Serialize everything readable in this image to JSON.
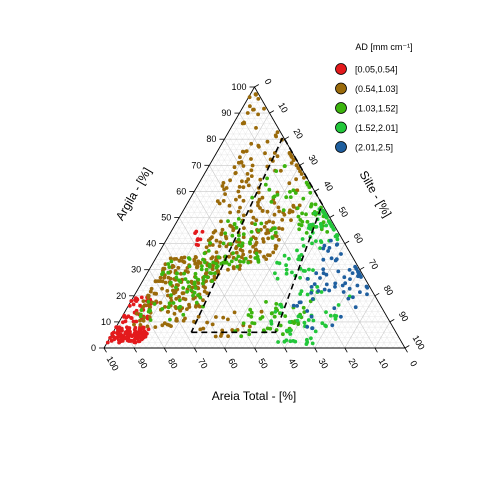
{
  "chart_data": {
    "type": "scatter",
    "subtype": "ternary",
    "axes": {
      "bottom": {
        "label": "Areia Total - [%]",
        "ticks": [
          "100",
          "90",
          "80",
          "70",
          "60",
          "50",
          "40",
          "30",
          "20",
          "10",
          "0"
        ]
      },
      "left": {
        "label": "Argila - [%]",
        "ticks": [
          "0",
          "10",
          "20",
          "30",
          "40",
          "50",
          "60",
          "70",
          "80",
          "90",
          "100"
        ]
      },
      "right": {
        "label": "Silte - [%]",
        "ticks": [
          "0",
          "10",
          "20",
          "30",
          "40",
          "50",
          "60",
          "70",
          "80",
          "90",
          "100"
        ]
      }
    },
    "grid": true,
    "legend": {
      "title": "AD [mm cm⁻¹]",
      "position": "top-right",
      "items": [
        {
          "label": "[0.05,0.54]",
          "color": "#e31a1c"
        },
        {
          "label": "(0.54,1.03]",
          "color": "#9a6a0a"
        },
        {
          "label": "(1.03,1.52]",
          "color": "#3cb40e"
        },
        {
          "label": "(1.52,2.01]",
          "color": "#22c73a"
        },
        {
          "label": "(2.01,2.5]",
          "color": "#1f5f9f"
        }
      ]
    },
    "region_outline": {
      "style": "dashed",
      "vertices": [
        {
          "clay": 6,
          "silt": 26,
          "sand": 68
        },
        {
          "clay": 6,
          "silt": 54,
          "sand": 40
        },
        {
          "clay": 55,
          "silt": 45,
          "sand": 0
        },
        {
          "clay": 81,
          "silt": 19,
          "sand": 0
        },
        {
          "clay": 6,
          "silt": 26,
          "sand": 68
        }
      ]
    },
    "clusters": [
      {
        "series": 0,
        "clay": [
          2,
          8
        ],
        "silt": [
          0,
          12
        ],
        "count": 110
      },
      {
        "series": 0,
        "clay": [
          8,
          20
        ],
        "silt": [
          0,
          10
        ],
        "count": 40
      },
      {
        "series": 0,
        "clay": [
          38,
          46
        ],
        "silt": [
          8,
          12
        ],
        "count": 8
      },
      {
        "series": 1,
        "clay": [
          8,
          35
        ],
        "silt": [
          4,
          24
        ],
        "count": 180
      },
      {
        "series": 1,
        "clay": [
          30,
          55
        ],
        "silt": [
          14,
          38
        ],
        "count": 130
      },
      {
        "series": 1,
        "clay": [
          55,
          85
        ],
        "silt": [
          8,
          35
        ],
        "count": 80
      },
      {
        "series": 1,
        "clay": [
          85,
          98
        ],
        "silt": [
          0,
          8
        ],
        "count": 14
      },
      {
        "series": 1,
        "clay": [
          4,
          14
        ],
        "silt": [
          24,
          46
        ],
        "count": 20
      },
      {
        "series": 2,
        "clay": [
          10,
          35
        ],
        "silt": [
          5,
          25
        ],
        "count": 70
      },
      {
        "series": 2,
        "clay": [
          30,
          50
        ],
        "silt": [
          15,
          35
        ],
        "count": 60
      },
      {
        "series": 2,
        "clay": [
          4,
          18
        ],
        "silt": [
          40,
          60
        ],
        "count": 45
      },
      {
        "series": 2,
        "clay": [
          44,
          56
        ],
        "silt": [
          40,
          52
        ],
        "count": 35
      },
      {
        "series": 2,
        "clay": [
          50,
          70
        ],
        "silt": [
          20,
          40
        ],
        "count": 25
      },
      {
        "series": 3,
        "clay": [
          40,
          55
        ],
        "silt": [
          44,
          58
        ],
        "count": 50
      },
      {
        "series": 3,
        "clay": [
          8,
          25
        ],
        "silt": [
          50,
          72
        ],
        "count": 35
      },
      {
        "series": 3,
        "clay": [
          1,
          8
        ],
        "silt": [
          55,
          72
        ],
        "count": 15
      },
      {
        "series": 3,
        "clay": [
          25,
          40
        ],
        "silt": [
          40,
          55
        ],
        "count": 25
      },
      {
        "series": 4,
        "clay": [
          14,
          32
        ],
        "silt": [
          54,
          78
        ],
        "count": 50
      },
      {
        "series": 4,
        "clay": [
          32,
          42
        ],
        "silt": [
          52,
          62
        ],
        "count": 12
      },
      {
        "series": 4,
        "clay": [
          4,
          12
        ],
        "silt": [
          62,
          74
        ],
        "count": 6
      }
    ]
  }
}
